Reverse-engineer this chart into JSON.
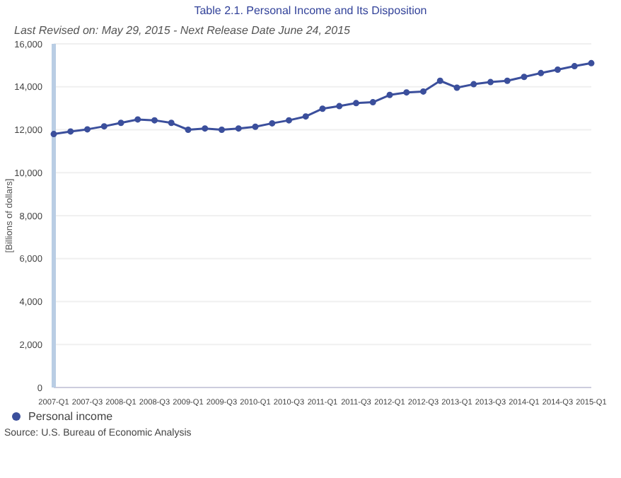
{
  "chart_data": {
    "type": "line",
    "title": "Table 2.1. Personal Income and Its Disposition",
    "subtitle": "Last Revised on: May 29, 2015 - Next Release Date June 24, 2015",
    "ylabel": "[Billions of dollars]",
    "categories": [
      "2007-Q1",
      null,
      "2007-Q3",
      null,
      "2008-Q1",
      null,
      "2008-Q3",
      null,
      "2009-Q1",
      null,
      "2009-Q3",
      null,
      "2010-Q1",
      null,
      "2010-Q3",
      null,
      "2011-Q1",
      null,
      "2011-Q3",
      null,
      "2012-Q1",
      null,
      "2012-Q3",
      null,
      "2013-Q1",
      null,
      "2013-Q3",
      null,
      "2014-Q1",
      null,
      "2014-Q3",
      null,
      "2015-Q1"
    ],
    "series": [
      {
        "name": "Personal income",
        "color": "#3b4f9c",
        "values": [
          11800,
          11920,
          12020,
          12160,
          12320,
          12480,
          12440,
          12320,
          12000,
          12060,
          12000,
          12060,
          12140,
          12300,
          12440,
          12620,
          12980,
          13100,
          13240,
          13280,
          13620,
          13740,
          13780,
          14280,
          13960,
          14120,
          14220,
          14280,
          14460,
          14640,
          14800,
          14960,
          15100
        ]
      }
    ],
    "ylim": [
      0,
      16000
    ],
    "yticks": [
      {
        "value": 0,
        "label": "0"
      },
      {
        "value": 2000,
        "label": "2,000"
      },
      {
        "value": 4000,
        "label": "4,000"
      },
      {
        "value": 6000,
        "label": "6,000"
      },
      {
        "value": 8000,
        "label": "8,000"
      },
      {
        "value": 10000,
        "label": "10,000"
      },
      {
        "value": 12000,
        "label": "12,000"
      },
      {
        "value": 14000,
        "label": "14,000"
      },
      {
        "value": 16000,
        "label": "16,000"
      }
    ],
    "grid": "y",
    "legend": "bottom left",
    "marker": "circle",
    "line_style": "solid",
    "annotations": [
      "Source: U.S. Bureau of Economic Analysis"
    ]
  }
}
